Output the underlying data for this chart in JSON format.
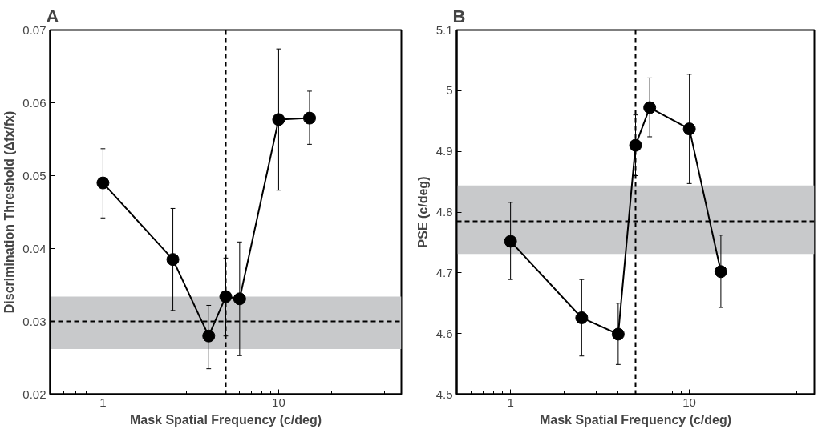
{
  "chart_data": [
    {
      "type": "line",
      "title": "A",
      "xlabel": "Mask Spatial Frequency (c/deg)",
      "ylabel": "Discrimination Threshold (Δfx/fx)",
      "log": "x",
      "x": [
        1,
        2.5,
        4,
        5,
        6,
        10,
        15
      ],
      "series": [
        {
          "color": "#000000",
          "values": [
            0.049,
            0.0385,
            0.028,
            0.0334,
            0.0331,
            0.0577,
            0.0579
          ],
          "errors": [
            [
              0.0442,
              0.0537
            ],
            [
              0.0315,
              0.0455
            ],
            [
              0.0235,
              0.0322
            ],
            [
              0.028,
              0.0387
            ],
            [
              0.0253,
              0.0409
            ],
            [
              0.048,
              0.0674
            ],
            [
              0.0543,
              0.0616
            ]
          ]
        }
      ],
      "xlim": [
        0.5,
        50
      ],
      "ylim": [
        0.02,
        0.07
      ],
      "xticks": [
        {
          "value": 0.6,
          "label": null
        },
        {
          "value": 0.7,
          "label": null
        },
        {
          "value": 0.8,
          "label": null
        },
        {
          "value": 0.9,
          "label": null
        },
        1,
        {
          "value": 2,
          "label": null
        },
        {
          "value": 3,
          "label": null
        },
        {
          "value": 4,
          "label": null
        },
        {
          "value": 5,
          "label": null
        },
        {
          "value": 6,
          "label": null
        },
        {
          "value": 7,
          "label": null
        },
        {
          "value": 8,
          "label": null
        },
        {
          "value": 9,
          "label": null
        },
        10,
        {
          "value": 20,
          "label": null
        },
        {
          "value": 30,
          "label": null
        },
        {
          "value": 40,
          "label": null
        }
      ],
      "yticks": [
        {
          "value": 0.02,
          "label": "0.02"
        },
        {
          "value": 0.03,
          "label": "0.03"
        },
        {
          "value": 0.04,
          "label": "0.04"
        },
        {
          "value": 0.05,
          "label": "0.05"
        },
        {
          "value": 0.06,
          "label": "0.06"
        },
        {
          "value": 0.07,
          "label": "0.07"
        }
      ],
      "ref_lines": [
        {
          "axis": "x",
          "value": 5,
          "color": "#000000",
          "line_style": "dashed"
        },
        {
          "axis": "y",
          "value": 0.03,
          "color": "#000000",
          "line_style": "dashed"
        }
      ],
      "bands": [
        {
          "axis": "y",
          "from": 0.0262,
          "to": 0.0334,
          "color": "#c8c9cb"
        }
      ],
      "marker": "circle",
      "line_style": "solid",
      "grid": false
    },
    {
      "type": "line",
      "title": "B",
      "xlabel": "Mask Spatial Frequency (c/deg)",
      "ylabel": "PSE (c/deg)",
      "log": "x",
      "x": [
        1,
        2.5,
        4,
        5,
        6,
        10,
        15
      ],
      "series": [
        {
          "color": "#000000",
          "values": [
            4.752,
            4.626,
            4.599,
            4.91,
            4.972,
            4.937,
            4.702
          ],
          "errors": [
            [
              4.689,
              4.816
            ],
            [
              4.563,
              4.689
            ],
            [
              4.549,
              4.65
            ],
            [
              4.86,
              4.96
            ],
            [
              4.924,
              5.021
            ],
            [
              4.847,
              5.027
            ],
            [
              4.643,
              4.762
            ]
          ]
        }
      ],
      "xlim": [
        0.5,
        50
      ],
      "ylim": [
        4.5,
        5.1
      ],
      "xticks": [
        {
          "value": 0.6,
          "label": null
        },
        {
          "value": 0.7,
          "label": null
        },
        {
          "value": 0.8,
          "label": null
        },
        {
          "value": 0.9,
          "label": null
        },
        1,
        {
          "value": 2,
          "label": null
        },
        {
          "value": 3,
          "label": null
        },
        {
          "value": 4,
          "label": null
        },
        {
          "value": 5,
          "label": null
        },
        {
          "value": 6,
          "label": null
        },
        {
          "value": 7,
          "label": null
        },
        {
          "value": 8,
          "label": null
        },
        {
          "value": 9,
          "label": null
        },
        10,
        {
          "value": 20,
          "label": null
        },
        {
          "value": 30,
          "label": null
        },
        {
          "value": 40,
          "label": null
        }
      ],
      "yticks": [
        4.5,
        4.6,
        4.7,
        4.8,
        4.9,
        {
          "value": 5,
          "label": "5"
        },
        5.1
      ],
      "ref_lines": [
        {
          "axis": "x",
          "value": 5,
          "color": "#000000",
          "line_style": "dashed"
        },
        {
          "axis": "y",
          "value": 4.785,
          "color": "#000000",
          "line_style": "dashed"
        }
      ],
      "bands": [
        {
          "axis": "y",
          "from": 4.731,
          "to": 4.844,
          "color": "#c8c9cb"
        }
      ],
      "marker": "circle",
      "line_style": "solid",
      "grid": false
    }
  ]
}
